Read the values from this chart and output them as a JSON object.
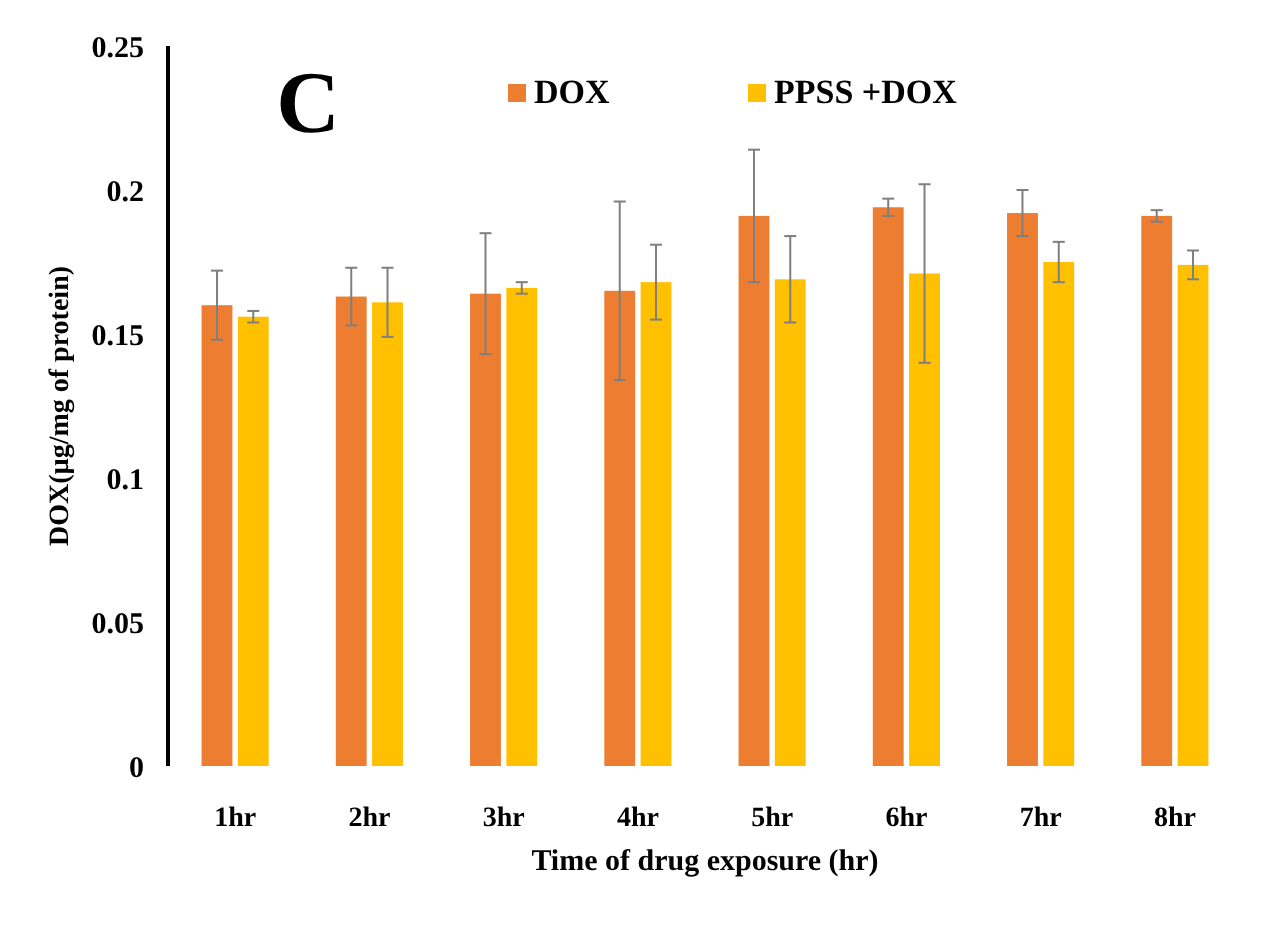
{
  "chart_data": {
    "type": "bar",
    "title": "C",
    "xlabel": "Time of drug exposure (hr)",
    "ylabel": "DOX(µg/mg of protein)",
    "categories": [
      "1hr",
      "2hr",
      "3hr",
      "4hr",
      "5hr",
      "6hr",
      "7hr",
      "8hr"
    ],
    "series": [
      {
        "name": "DOX",
        "color": "#ed7d31",
        "values": [
          0.16,
          0.163,
          0.164,
          0.165,
          0.191,
          0.194,
          0.192,
          0.191
        ],
        "errors": [
          0.012,
          0.01,
          0.021,
          0.031,
          0.023,
          0.003,
          0.008,
          0.002
        ]
      },
      {
        "name": "PPSS +DOX",
        "color": "#ffc000",
        "values": [
          0.156,
          0.161,
          0.166,
          0.168,
          0.169,
          0.171,
          0.175,
          0.174
        ],
        "errors": [
          0.002,
          0.012,
          0.002,
          0.013,
          0.015,
          0.031,
          0.007,
          0.005
        ]
      }
    ],
    "ylim": [
      0,
      0.25
    ],
    "yticks": [
      0,
      0.05,
      0.1,
      0.15,
      0.2,
      0.25
    ],
    "grid": false,
    "legend": "top"
  }
}
